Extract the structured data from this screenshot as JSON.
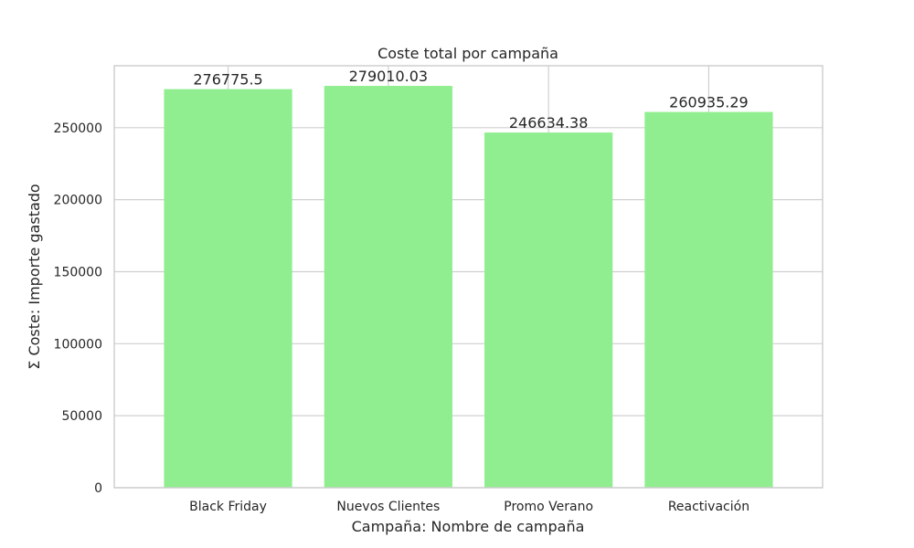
{
  "chart_data": {
    "type": "bar",
    "title": "Coste total por campaña",
    "xlabel": "Campaña: Nombre de campaña",
    "ylabel": "Σ Coste: Importe gastado",
    "categories": [
      "Black Friday",
      "Nuevos Clientes",
      "Promo Verano",
      "Reactivación"
    ],
    "values": [
      276775.5,
      279010.03,
      246634.38,
      260935.29
    ],
    "value_labels": [
      "276775.5",
      "279010.03",
      "246634.38",
      "260935.29"
    ],
    "ylim": [
      0,
      293000
    ],
    "yticks": [
      0,
      50000,
      100000,
      150000,
      200000,
      250000
    ],
    "ytick_labels": [
      "0",
      "50000",
      "100000",
      "150000",
      "200000",
      "250000"
    ],
    "grid": true,
    "bar_color": "#90ee90",
    "grid_color": "#d0d0d0",
    "frame_color": "#cccccc"
  }
}
